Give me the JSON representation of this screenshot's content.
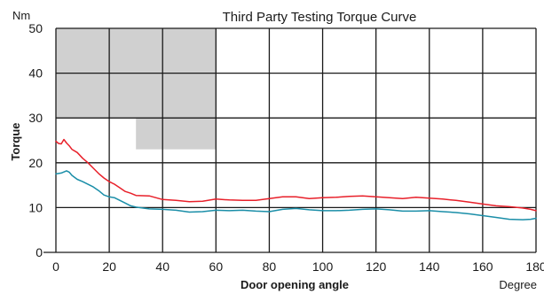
{
  "chart_data": {
    "type": "line",
    "title": "Third Party Testing Torque Curve",
    "xlabel": "Door opening angle",
    "ylabel": "Torque",
    "x_unit": "Degree",
    "y_unit": "Nm",
    "xlim": [
      0,
      180
    ],
    "ylim": [
      0,
      50
    ],
    "x_ticks": [
      0,
      20,
      40,
      60,
      80,
      100,
      120,
      140,
      160,
      180
    ],
    "y_ticks": [
      0,
      10,
      20,
      30,
      40,
      50
    ],
    "grid": true,
    "shaded_regions": [
      {
        "x": [
          0,
          60
        ],
        "y": [
          30,
          50
        ],
        "color": "#d0d0d0"
      },
      {
        "x": [
          30,
          60
        ],
        "y": [
          23,
          30
        ],
        "color": "#d0d0d0"
      }
    ],
    "series": [
      {
        "color": "#e8202a",
        "points": [
          [
            0,
            24.8
          ],
          [
            1,
            24.3
          ],
          [
            2,
            24.2
          ],
          [
            3,
            25.2
          ],
          [
            4,
            24.4
          ],
          [
            5,
            23.8
          ],
          [
            6,
            23.0
          ],
          [
            8,
            22.3
          ],
          [
            10,
            21.0
          ],
          [
            12,
            20.0
          ],
          [
            14,
            18.8
          ],
          [
            16,
            17.6
          ],
          [
            18,
            16.6
          ],
          [
            20,
            15.8
          ],
          [
            22,
            15.2
          ],
          [
            24,
            14.4
          ],
          [
            26,
            13.6
          ],
          [
            28,
            13.2
          ],
          [
            30,
            12.7
          ],
          [
            35,
            12.6
          ],
          [
            40,
            11.8
          ],
          [
            45,
            11.6
          ],
          [
            50,
            11.3
          ],
          [
            55,
            11.4
          ],
          [
            60,
            11.9
          ],
          [
            65,
            11.7
          ],
          [
            70,
            11.6
          ],
          [
            75,
            11.6
          ],
          [
            80,
            12.0
          ],
          [
            85,
            12.4
          ],
          [
            90,
            12.4
          ],
          [
            95,
            12.0
          ],
          [
            100,
            12.2
          ],
          [
            105,
            12.3
          ],
          [
            110,
            12.5
          ],
          [
            115,
            12.6
          ],
          [
            120,
            12.4
          ],
          [
            125,
            12.2
          ],
          [
            130,
            12.0
          ],
          [
            135,
            12.3
          ],
          [
            140,
            12.1
          ],
          [
            145,
            11.9
          ],
          [
            150,
            11.6
          ],
          [
            155,
            11.2
          ],
          [
            160,
            10.8
          ],
          [
            165,
            10.4
          ],
          [
            170,
            10.2
          ],
          [
            175,
            9.9
          ],
          [
            178,
            9.6
          ],
          [
            180,
            9.3
          ]
        ]
      },
      {
        "color": "#1a8ea8",
        "points": [
          [
            0,
            17.5
          ],
          [
            2,
            17.7
          ],
          [
            4,
            18.2
          ],
          [
            5,
            17.9
          ],
          [
            6,
            17.2
          ],
          [
            8,
            16.3
          ],
          [
            10,
            15.8
          ],
          [
            12,
            15.2
          ],
          [
            14,
            14.6
          ],
          [
            16,
            13.8
          ],
          [
            18,
            12.8
          ],
          [
            20,
            12.4
          ],
          [
            22,
            12.2
          ],
          [
            24,
            11.6
          ],
          [
            26,
            11.0
          ],
          [
            28,
            10.4
          ],
          [
            30,
            10.1
          ],
          [
            35,
            9.7
          ],
          [
            40,
            9.6
          ],
          [
            45,
            9.4
          ],
          [
            50,
            9.0
          ],
          [
            55,
            9.1
          ],
          [
            60,
            9.4
          ],
          [
            65,
            9.3
          ],
          [
            70,
            9.4
          ],
          [
            75,
            9.2
          ],
          [
            80,
            9.1
          ],
          [
            85,
            9.6
          ],
          [
            90,
            9.8
          ],
          [
            95,
            9.5
          ],
          [
            100,
            9.3
          ],
          [
            105,
            9.3
          ],
          [
            110,
            9.4
          ],
          [
            115,
            9.6
          ],
          [
            120,
            9.7
          ],
          [
            125,
            9.5
          ],
          [
            130,
            9.2
          ],
          [
            135,
            9.2
          ],
          [
            140,
            9.3
          ],
          [
            145,
            9.1
          ],
          [
            150,
            8.9
          ],
          [
            155,
            8.6
          ],
          [
            160,
            8.2
          ],
          [
            165,
            7.8
          ],
          [
            170,
            7.4
          ],
          [
            175,
            7.3
          ],
          [
            178,
            7.4
          ],
          [
            180,
            7.6
          ]
        ]
      }
    ]
  }
}
